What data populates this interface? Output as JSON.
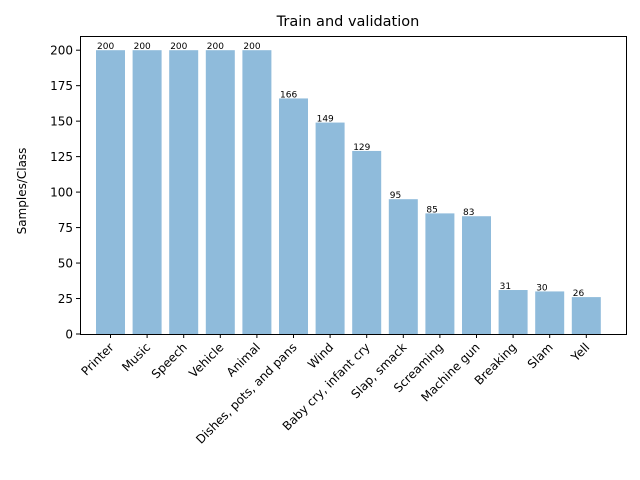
{
  "chart_data": {
    "type": "bar",
    "title": "Train and validation",
    "xlabel": "",
    "ylabel": "Samples/Class",
    "categories": [
      "Printer",
      "Music",
      "Speech",
      "Vehicle",
      "Animal",
      "Dishes, pots, and pans",
      "Wind",
      "Baby cry, infant cry",
      "Slap, smack",
      "Screaming",
      "Machine gun",
      "Breaking",
      "Slam",
      "Yell"
    ],
    "values": [
      200,
      200,
      200,
      200,
      200,
      166,
      149,
      129,
      95,
      85,
      83,
      31,
      30,
      26
    ],
    "yticks": [
      0,
      25,
      50,
      75,
      100,
      125,
      150,
      175,
      200
    ],
    "ylim": [
      0,
      210
    ],
    "bar_color": "#8fbbdb",
    "grid": false,
    "data_labels": true
  }
}
